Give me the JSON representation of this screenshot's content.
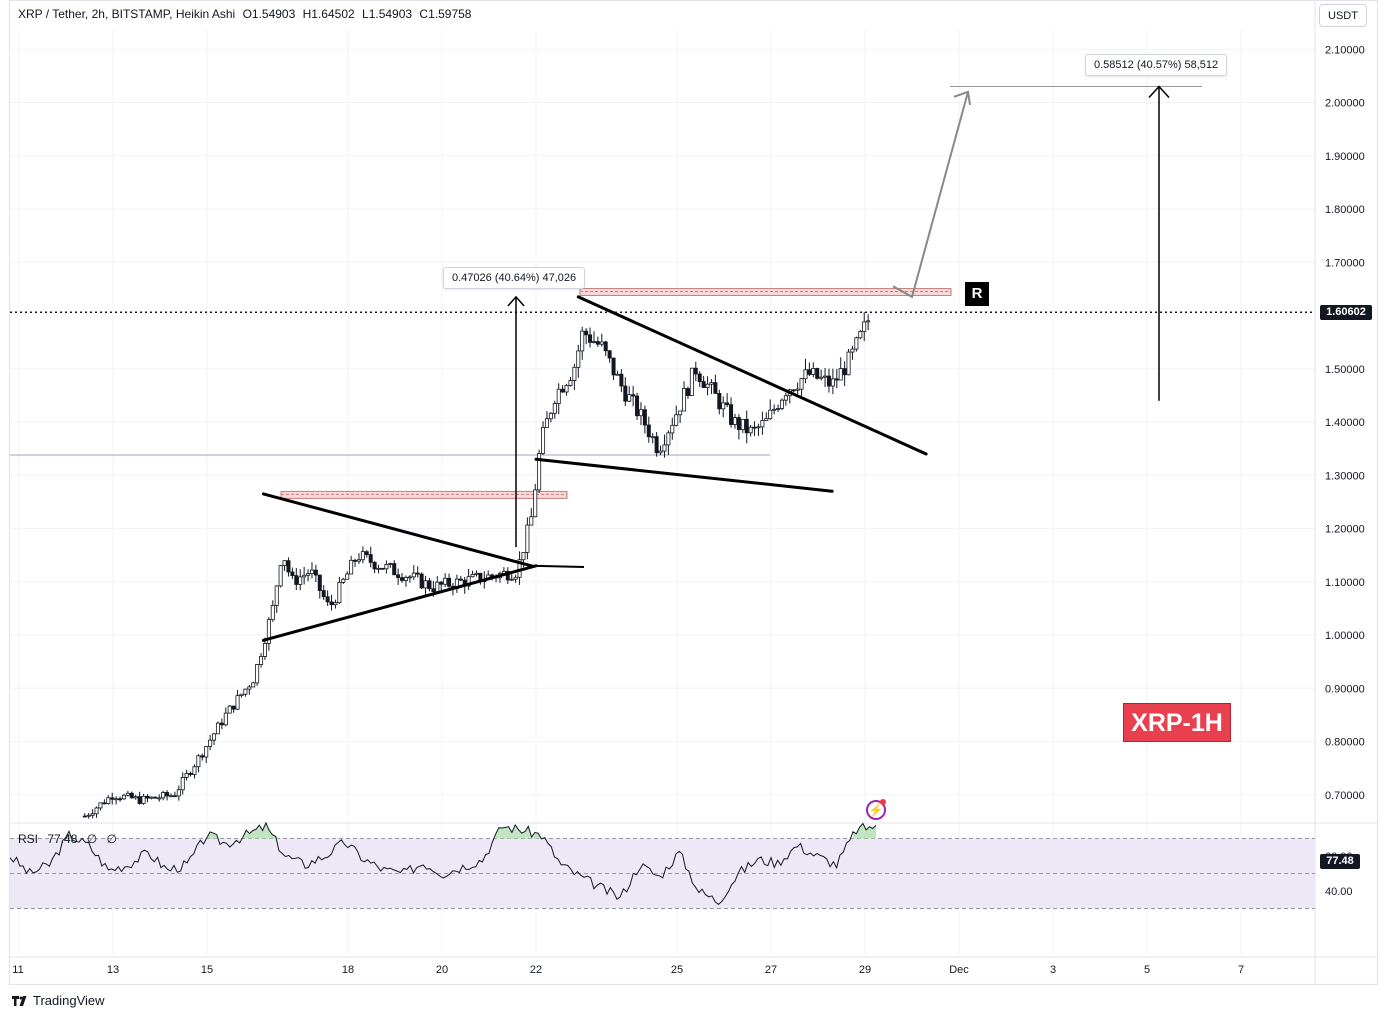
{
  "header": {
    "symbol": "XRP / Tether, 2h, BITSTAMP, Heikin Ashi",
    "open": "O1.54903",
    "high": "H1.64502",
    "low": "L1.54903",
    "close": "C1.59758"
  },
  "currency_button": "USDT",
  "current_price_label": "1.60602",
  "measure_1": "0.47026 (40.64%) 47,026",
  "measure_2": "0.58512 (40.57%) 58,512",
  "resistance_marker": "R",
  "badge": "XRP-1H",
  "rsi": {
    "name": "RSI",
    "value": "77.48",
    "extra1": "∅",
    "extra2": "∅",
    "tag": "77.48",
    "axis_labels": [
      "60.00",
      "40.00"
    ],
    "upper_band": 70,
    "lower_band": 30,
    "middle": 50
  },
  "footer": {
    "brand": "TradingView"
  },
  "colors": {
    "up_candle": "#ffffff",
    "down_candle": "#131722",
    "rsi_line": "#131722",
    "rsi_band_fill": "#ede7f6",
    "rsi_overbought_fill": "#b2dfb0",
    "resistance_zone": "#f8d7d7",
    "projection_arrow": "#888888",
    "badge": "#e8404e"
  },
  "chart_data": {
    "type": "candlestick",
    "title": "XRP / Tether, 2h, BITSTAMP, Heikin Ashi",
    "ylabel": "USDT",
    "y_ticks": [
      "2.10000",
      "2.00000",
      "1.90000",
      "1.80000",
      "1.70000",
      "1.60602",
      "1.50000",
      "1.40000",
      "1.30000",
      "1.20000",
      "1.10000",
      "1.00000",
      "0.90000",
      "0.80000",
      "0.70000"
    ],
    "ylim": [
      0.645,
      2.14
    ],
    "x_ticks": [
      "11",
      "13",
      "15",
      "18",
      "20",
      "22",
      "25",
      "27",
      "29",
      "Dec",
      "3",
      "5",
      "7"
    ],
    "price_path": [
      [
        12.4,
        0.66
      ],
      [
        13.0,
        0.7
      ],
      [
        13.6,
        0.69
      ],
      [
        14.3,
        0.7
      ],
      [
        14.9,
        0.78
      ],
      [
        15.4,
        0.85
      ],
      [
        16.0,
        0.92
      ],
      [
        16.4,
        1.05
      ],
      [
        16.6,
        1.16
      ],
      [
        16.8,
        1.1
      ],
      [
        17.2,
        1.12
      ],
      [
        17.6,
        1.05
      ],
      [
        18.2,
        1.15
      ],
      [
        18.7,
        1.13
      ],
      [
        19.3,
        1.11
      ],
      [
        19.8,
        1.09
      ],
      [
        20.4,
        1.1
      ],
      [
        21.0,
        1.11
      ],
      [
        21.6,
        1.12
      ],
      [
        21.9,
        1.22
      ],
      [
        22.1,
        1.36
      ],
      [
        22.4,
        1.45
      ],
      [
        22.8,
        1.5
      ],
      [
        23.0,
        1.57
      ],
      [
        23.4,
        1.54
      ],
      [
        23.8,
        1.47
      ],
      [
        24.3,
        1.4
      ],
      [
        24.6,
        1.35
      ],
      [
        25.0,
        1.42
      ],
      [
        25.4,
        1.5
      ],
      [
        25.8,
        1.45
      ],
      [
        26.2,
        1.4
      ],
      [
        26.6,
        1.38
      ],
      [
        26.9,
        1.4
      ],
      [
        27.3,
        1.46
      ],
      [
        27.8,
        1.49
      ],
      [
        28.3,
        1.47
      ],
      [
        28.7,
        1.52
      ],
      [
        29.1,
        1.59758
      ]
    ],
    "levels": {
      "resistance_top": 1.64502,
      "resistance_first": 1.264,
      "current_price": 1.60602,
      "support_line": 1.338
    },
    "trendlines": [
      {
        "from": [
          16.2,
          1.265
        ],
        "to": [
          21.9,
          1.13
        ]
      },
      {
        "from": [
          16.2,
          0.99
        ],
        "to": [
          22.0,
          1.13
        ]
      },
      {
        "from": [
          22.9,
          1.635
        ],
        "to": [
          30.3,
          1.34
        ]
      },
      {
        "from": [
          22.0,
          1.33
        ],
        "to": [
          28.3,
          1.27
        ]
      }
    ],
    "projections": [
      {
        "from": [
          30.0,
          1.645
        ],
        "to": [
          30.8,
          2.02
        ],
        "label": "0.58512 (40.57%) 58,512"
      },
      {
        "from": [
          21.7,
          1.165
        ],
        "to": [
          21.7,
          1.635
        ],
        "label": "0.47026 (40.64%) 47,026"
      }
    ],
    "target_price": 2.03,
    "rsi_series": [
      60,
      50,
      55,
      72,
      66,
      52,
      55,
      62,
      52,
      55,
      72,
      67,
      72,
      77,
      60,
      55,
      60,
      68,
      58,
      52,
      50,
      56,
      50,
      54,
      58,
      77,
      75,
      72,
      55,
      48,
      42,
      36,
      55,
      48,
      62,
      40,
      34,
      50,
      58,
      56,
      66,
      60,
      55,
      75,
      77.48
    ]
  }
}
